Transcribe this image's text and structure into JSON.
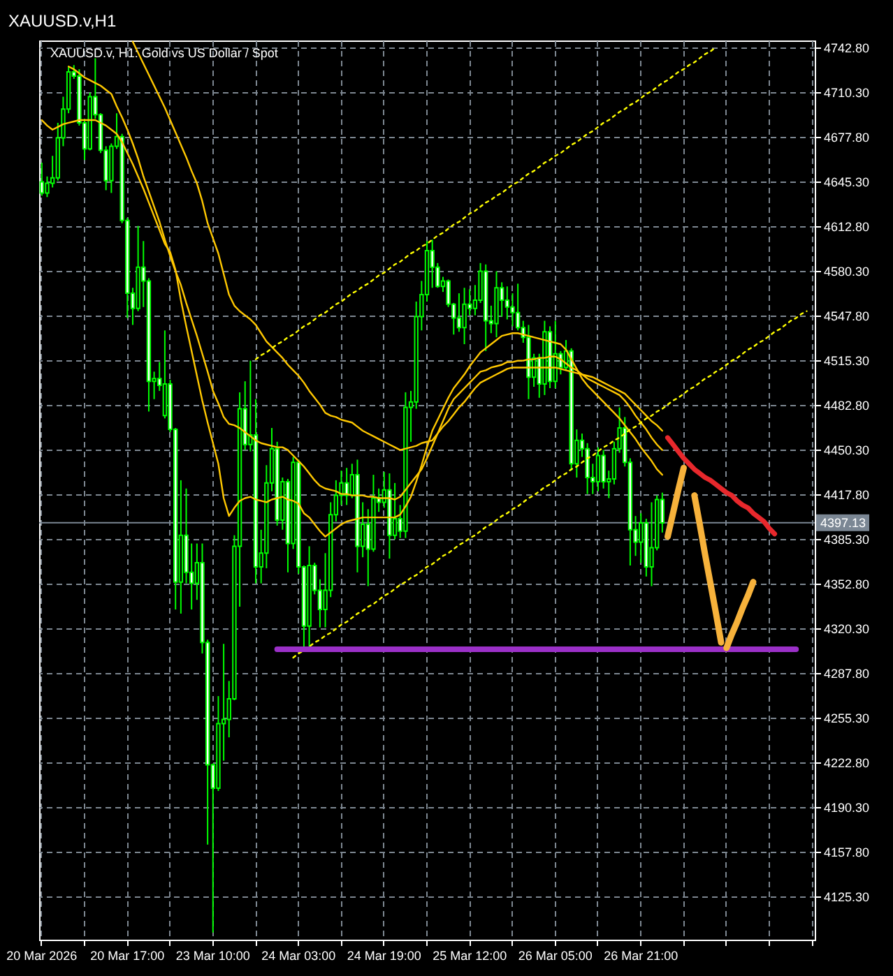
{
  "chart_data": {
    "type": "candlestick",
    "title": "XAUUSD.v,H1",
    "subtitle": "XAUUSD.v, H1: Gold vs US Dollar / Spot",
    "categories": [
      "20 Mar 2026",
      null,
      null,
      null,
      null,
      null,
      null,
      null,
      null,
      null,
      null,
      null,
      null,
      null,
      null,
      null,
      "20 Mar 17:00",
      null,
      null,
      null,
      null,
      null,
      null,
      null,
      null,
      null,
      null,
      null,
      null,
      null,
      null,
      null,
      "23 Mar 10:00",
      null,
      null,
      null,
      null,
      null,
      null,
      null,
      null,
      null,
      null,
      null,
      null,
      null,
      null,
      null,
      "24 Mar 03:00",
      null,
      null,
      null,
      null,
      null,
      null,
      null,
      null,
      null,
      null,
      null,
      null,
      null,
      null,
      null,
      "24 Mar 19:00",
      null,
      null,
      null,
      null,
      null,
      null,
      null,
      null,
      null,
      null,
      null,
      null,
      null,
      null,
      null,
      "25 Mar 12:00",
      null,
      null,
      null,
      null,
      null,
      null,
      null,
      null,
      null,
      null,
      null,
      null,
      null,
      null,
      null,
      "26 Mar 05:00",
      null,
      null,
      null,
      null,
      null,
      null,
      null,
      null,
      null,
      null,
      null,
      null,
      null,
      null,
      null,
      "26 Mar 21:00",
      null,
      null,
      null,
      null,
      null,
      null,
      null,
      null,
      null,
      null,
      null,
      null,
      null,
      null,
      null,
      null,
      null,
      null,
      null,
      null,
      null,
      null,
      null,
      null,
      null,
      null,
      null,
      null,
      null,
      null,
      null,
      null
    ],
    "ohlc": [
      [
        4645,
        4659,
        4635,
        4637
      ],
      [
        4637,
        4649,
        4634,
        4644
      ],
      [
        4644,
        4664,
        4641,
        4648
      ],
      [
        4648,
        4688,
        4646,
        4677
      ],
      [
        4677,
        4707,
        4671,
        4698
      ],
      [
        4698,
        4729,
        4695,
        4725
      ],
      [
        4725,
        4730,
        4720,
        4722
      ],
      [
        4722,
        4727,
        4686,
        4688
      ],
      [
        4688,
        4691,
        4661,
        4669
      ],
      [
        4669,
        4710,
        4668,
        4707
      ],
      [
        4707,
        4735,
        4691,
        4694
      ],
      [
        4694,
        4695,
        4666,
        4668
      ],
      [
        4668,
        4671,
        4639,
        4646
      ],
      [
        4646,
        4673,
        4637,
        4671
      ],
      [
        4671,
        4695,
        4669,
        4678
      ],
      [
        4678,
        4680,
        4615,
        4617
      ],
      [
        4617,
        4619,
        4546,
        4564
      ],
      [
        4564,
        4568,
        4541,
        4553
      ],
      [
        4553,
        4613,
        4551,
        4583
      ],
      [
        4583,
        4602,
        4554,
        4573
      ],
      [
        4573,
        4575,
        4478,
        4500
      ],
      [
        4500,
        4507,
        4487,
        4502
      ],
      [
        4502,
        4514,
        4493,
        4497
      ],
      [
        4475,
        4537,
        4473,
        4498
      ],
      [
        4498,
        4501,
        4463,
        4465
      ],
      [
        4465,
        4466,
        4334,
        4354
      ],
      [
        4354,
        4428,
        4331,
        4388
      ],
      [
        4388,
        4422,
        4353,
        4361
      ],
      [
        4361,
        4382,
        4334,
        4353
      ],
      [
        4353,
        4382,
        4341,
        4368
      ],
      [
        4368,
        4382,
        4302,
        4310
      ],
      [
        4310,
        4312,
        4163,
        4221
      ],
      [
        4221,
        4222,
        4099,
        4204
      ],
      [
        4204,
        4271,
        4202,
        4251
      ],
      [
        4251,
        4309,
        4224,
        4254
      ],
      [
        4254,
        4282,
        4241,
        4269
      ],
      [
        4269,
        4388,
        4268,
        4380
      ],
      [
        4380,
        4492,
        4336,
        4480
      ],
      [
        4480,
        4500,
        4450,
        4454
      ],
      [
        4454,
        4515,
        4449,
        4461
      ],
      [
        4461,
        4487,
        4353,
        4365
      ],
      [
        4365,
        4392,
        4353,
        4375
      ],
      [
        4375,
        4439,
        4364,
        4426
      ],
      [
        4426,
        4466,
        4420,
        4451
      ],
      [
        4451,
        4456,
        4395,
        4399
      ],
      [
        4399,
        4430,
        4392,
        4427
      ],
      [
        4427,
        4429,
        4361,
        4382
      ],
      [
        4382,
        4445,
        4378,
        4441
      ],
      [
        4441,
        4443,
        4360,
        4365
      ],
      [
        4365,
        4366,
        4307,
        4322
      ],
      [
        4322,
        4380,
        4307,
        4366
      ],
      [
        4366,
        4368,
        4345,
        4348
      ],
      [
        4348,
        4356,
        4321,
        4334
      ],
      [
        4334,
        4375,
        4321,
        4348
      ],
      [
        4348,
        4412,
        4343,
        4403
      ],
      [
        4403,
        4428,
        4398,
        4417
      ],
      [
        4417,
        4435,
        4410,
        4426
      ],
      [
        4426,
        4437,
        4410,
        4417
      ],
      [
        4417,
        4440,
        4415,
        4432
      ],
      [
        4432,
        4443,
        4361,
        4380
      ],
      [
        4380,
        4412,
        4372,
        4396
      ],
      [
        4396,
        4407,
        4351,
        4378
      ],
      [
        4378,
        4432,
        4376,
        4415
      ],
      [
        4415,
        4422,
        4405,
        4412
      ],
      [
        4412,
        4434,
        4408,
        4421
      ],
      [
        4421,
        4433,
        4371,
        4388
      ],
      [
        4388,
        4426,
        4385,
        4400
      ],
      [
        4400,
        4410,
        4386,
        4391
      ],
      [
        4391,
        4492,
        4386,
        4481
      ],
      [
        4481,
        4493,
        4456,
        4485
      ],
      [
        4485,
        4558,
        4480,
        4547
      ],
      [
        4547,
        4573,
        4537,
        4563
      ],
      [
        4563,
        4602,
        4558,
        4595
      ],
      [
        4595,
        4603,
        4568,
        4583
      ],
      [
        4583,
        4586,
        4568,
        4569
      ],
      [
        4569,
        4576,
        4565,
        4573
      ],
      [
        4573,
        4574,
        4554,
        4556
      ],
      [
        4556,
        4557,
        4534,
        4546
      ],
      [
        4546,
        4564,
        4536,
        4539
      ],
      [
        4539,
        4568,
        4527,
        4556
      ],
      [
        4556,
        4567,
        4548,
        4553
      ],
      [
        4553,
        4570,
        4548,
        4559
      ],
      [
        4559,
        4586,
        4557,
        4580
      ],
      [
        4580,
        4585,
        4522,
        4544
      ],
      [
        4544,
        4555,
        4535,
        4542
      ],
      [
        4542,
        4580,
        4532,
        4568
      ],
      [
        4568,
        4572,
        4547,
        4559
      ],
      [
        4559,
        4569,
        4545,
        4554
      ],
      [
        4554,
        4564,
        4540,
        4550
      ],
      [
        4550,
        4571,
        4537,
        4539
      ],
      [
        4539,
        4544,
        4528,
        4532
      ],
      [
        4532,
        4541,
        4487,
        4503
      ],
      [
        4503,
        4520,
        4496,
        4517
      ],
      [
        4517,
        4520,
        4488,
        4498
      ],
      [
        4498,
        4544,
        4490,
        4536
      ],
      [
        4536,
        4540,
        4495,
        4500
      ],
      [
        4500,
        4544,
        4495,
        4520
      ],
      [
        4520,
        4522,
        4505,
        4510
      ],
      [
        4510,
        4530,
        4508,
        4522
      ],
      [
        4522,
        4524,
        4435,
        4440
      ],
      [
        4440,
        4465,
        4430,
        4457
      ],
      [
        4457,
        4462,
        4445,
        4451
      ],
      [
        4451,
        4455,
        4418,
        4430
      ],
      [
        4430,
        4440,
        4418,
        4427
      ],
      [
        4427,
        4452,
        4420,
        4446
      ],
      [
        4446,
        4450,
        4422,
        4427
      ],
      [
        4427,
        4435,
        4415,
        4429
      ],
      [
        4429,
        4456,
        4425,
        4451
      ],
      [
        4451,
        4481,
        4448,
        4466
      ],
      [
        4466,
        4474,
        4438,
        4441
      ],
      [
        4441,
        4444,
        4366,
        4392
      ],
      [
        4392,
        4402,
        4373,
        4383
      ],
      [
        4383,
        4404,
        4368,
        4397
      ],
      [
        4397,
        4400,
        4358,
        4365
      ],
      [
        4365,
        4412,
        4351,
        4379
      ],
      [
        4379,
        4417,
        4377,
        4414
      ],
      [
        4414,
        4419,
        4390,
        4397
      ],
      null,
      null,
      null,
      null,
      null,
      null,
      null,
      null,
      null,
      null,
      null,
      null,
      null,
      null,
      null,
      null,
      null,
      null,
      null,
      null,
      null,
      null,
      null,
      null,
      null,
      null,
      null,
      null
    ],
    "color": "#00ff00",
    "colors": [
      "#ffffff",
      "#000000",
      "#000000",
      "#000000",
      "#000000",
      "#000000",
      "#ffffff",
      "#ffffff",
      "#ffffff",
      "#000000",
      "#ffffff",
      "#ffffff",
      "#ffffff",
      "#000000",
      "#000000",
      "#ffffff",
      "#ffffff",
      "#ffffff",
      "#000000",
      "#ffffff",
      "#ffffff",
      "#000000",
      "#ffffff",
      "#000000",
      "#ffffff",
      "#ffffff",
      "#000000",
      "#ffffff",
      "#ffffff",
      "#000000",
      "#ffffff",
      "#ffffff",
      "#ffffff",
      "#000000",
      "#000000",
      "#000000",
      "#000000",
      "#000000",
      "#ffffff",
      "#000000",
      "#ffffff",
      "#000000",
      "#000000",
      "#000000",
      "#ffffff",
      "#000000",
      "#ffffff",
      "#000000",
      "#ffffff",
      "#ffffff",
      "#000000",
      "#ffffff",
      "#ffffff",
      "#000000",
      "#000000",
      "#000000",
      "#000000",
      "#ffffff",
      "#000000",
      "#ffffff",
      "#000000",
      "#ffffff",
      "#000000",
      "#ffffff",
      "#000000",
      "#ffffff",
      "#000000",
      "#ffffff",
      "#000000",
      "#000000",
      "#000000",
      "#000000",
      "#000000",
      "#ffffff",
      "#ffffff",
      "#000000",
      "#ffffff",
      "#ffffff",
      "#ffffff",
      "#000000",
      "#ffffff",
      "#000000",
      "#000000",
      "#ffffff",
      "#ffffff",
      "#000000",
      "#ffffff",
      "#ffffff",
      "#ffffff",
      "#ffffff",
      "#ffffff",
      "#ffffff",
      "#000000",
      "#ffffff",
      "#000000",
      "#ffffff",
      "#000000",
      "#ffffff",
      "#000000",
      "#ffffff",
      "#000000",
      "#ffffff",
      "#ffffff",
      "#ffffff",
      "#000000",
      "#ffffff",
      "#000000",
      "#000000",
      "#000000",
      "#ffffff",
      "#ffffff",
      "#ffffff",
      "#000000",
      "#ffffff",
      "#000000",
      "#000000",
      "#ffffff",
      null,
      null,
      null,
      null,
      null,
      null,
      null,
      null,
      null,
      null,
      null,
      null,
      null,
      null,
      null,
      null,
      null,
      null,
      null,
      null,
      null,
      null,
      null,
      null,
      null,
      null,
      null,
      null
    ],
    "ylim": [
      4093.8,
      4747.9
    ],
    "yticks": [
      {
        "value": 4125.3,
        "label": "4125.30"
      },
      {
        "value": 4157.8,
        "label": "4157.80"
      },
      {
        "value": 4190.3,
        "label": "4190.30"
      },
      {
        "value": 4222.8,
        "label": "4222.80"
      },
      {
        "value": 4255.3,
        "label": "4255.30"
      },
      {
        "value": 4287.8,
        "label": "4287.80"
      },
      {
        "value": 4320.3,
        "label": "4320.30"
      },
      {
        "value": 4352.8,
        "label": "4352.80"
      },
      {
        "value": 4385.3,
        "label": "4385.30"
      },
      {
        "value": 4417.8,
        "label": "4417.80"
      },
      {
        "value": 4450.3,
        "label": "4450.30"
      },
      {
        "value": 4482.8,
        "label": "4482.80"
      },
      {
        "value": 4515.3,
        "label": "4515.30"
      },
      {
        "value": 4547.8,
        "label": "4547.80"
      },
      {
        "value": 4580.3,
        "label": "4580.30"
      },
      {
        "value": 4612.8,
        "label": "4612.80"
      },
      {
        "value": 4645.3,
        "label": "4645.30"
      },
      {
        "value": 4677.8,
        "label": "4677.80"
      },
      {
        "value": 4710.3,
        "label": "4710.30"
      },
      {
        "value": 4742.8,
        "label": "4742.80"
      }
    ],
    "grid": true,
    "series": [
      {
        "type": "line",
        "color": "#ffc800",
        "values": [
          4690,
          4686,
          4683,
          4685,
          4687,
          4688,
          4689,
          4690,
          4690,
          4690,
          4690,
          4688,
          4686,
          4683,
          4680,
          4674,
          4666,
          4658,
          4649,
          4640,
          4630,
          4620,
          4610,
          4600,
          4594,
          4581,
          4559,
          4540,
          4522,
          4504,
          4486,
          4470,
          4455,
          4440,
          4415,
          4402,
          4408,
          4413,
          4415,
          4416,
          4414,
          4413,
          4412,
          4414,
          4415,
          4416,
          4414,
          4413,
          4411,
          4404,
          4401,
          4396,
          4391,
          4387,
          4390,
          4393,
          4396,
          4398,
          4399,
          4400,
          4401,
          4401,
          4401,
          4401,
          4401,
          4401,
          4401,
          4403,
          4409,
          4416,
          4427,
          4439,
          4452,
          4464,
          4472,
          4480,
          4488,
          4495,
          4500,
          4505,
          4511,
          4516,
          4521,
          4524,
          4527,
          4530,
          4533,
          4534,
          4535,
          4535,
          4534,
          4533,
          4532,
          4531,
          4530,
          4529,
          4528,
          4527,
          4523,
          4516,
          4509,
          4502,
          4497,
          4493,
          4489,
          4485,
          4481,
          4477,
          4473,
          4468,
          4463,
          4458,
          4452,
          4447,
          4442,
          4436,
          4432,
          null,
          null,
          null,
          null,
          null,
          null,
          null,
          null,
          null,
          null,
          null,
          null,
          null,
          null,
          null,
          null,
          null,
          null,
          null,
          null,
          null,
          null,
          null,
          null,
          null,
          null,
          null,
          null
        ]
      },
      {
        "type": "line",
        "color": "#ffc800",
        "values": [
          null,
          null,
          null,
          null,
          null,
          4729,
          4727,
          4724,
          4721,
          4719,
          4717,
          4715,
          4712,
          4709,
          4700,
          4692,
          4683,
          4673,
          4662,
          4649,
          4638,
          4627,
          4616,
          4603,
          4591,
          4580,
          4570,
          4557,
          4545,
          4533,
          4520,
          4507,
          4493,
          4484,
          4474,
          4469,
          4468,
          4466,
          4463,
          4460,
          4457,
          4455,
          4454,
          4453,
          4452,
          4452,
          4450,
          4446,
          4442,
          4438,
          4433,
          4428,
          4424,
          4422,
          4421,
          4420,
          4418,
          4418,
          4417,
          4417,
          4417,
          4416,
          4416,
          4415,
          4415,
          4415,
          4414,
          4416,
          4421,
          4426,
          4431,
          4436,
          4444,
          4453,
          4462,
          4471,
          4480,
          4487,
          4491,
          4495,
          4499,
          4503,
          4507,
          4508,
          4510,
          4511,
          4512,
          4514,
          4514,
          4515,
          4515,
          4516,
          4516,
          4517,
          4517,
          4518,
          4518,
          4516,
          4513,
          4510,
          4508,
          4505,
          4502,
          4500,
          4498,
          4496,
          4494,
          4492,
          4490,
          4486,
          4481,
          4475,
          4470,
          4465,
          4459,
          4454,
          4450,
          null,
          null,
          null,
          null,
          null,
          null,
          null,
          null,
          null,
          null,
          null,
          null,
          null,
          null,
          null,
          null,
          null,
          null,
          null,
          null,
          null,
          null,
          null,
          null,
          null,
          null,
          null,
          null
        ]
      },
      {
        "type": "line",
        "color": "#ffc800",
        "values": [
          null,
          null,
          null,
          null,
          null,
          null,
          null,
          null,
          null,
          null,
          null,
          null,
          null,
          null,
          null,
          null,
          null,
          4747,
          4739,
          4731,
          4723,
          4715,
          4707,
          4699,
          4690,
          4681,
          4672,
          4663,
          4653,
          4644,
          4631,
          4615,
          4604,
          4593,
          4578,
          4563,
          4555,
          4551,
          4548,
          4545,
          4541,
          4535,
          4529,
          4525,
          4521,
          4517,
          4512,
          4508,
          4504,
          4499,
          4493,
          4488,
          4483,
          4477,
          4475,
          4474,
          4472,
          4471,
          4470,
          4467,
          4464,
          4462,
          4460,
          4458,
          4456,
          4454,
          4452,
          4450,
          4451,
          4452,
          4453,
          4455,
          4456,
          4457,
          4462,
          4467,
          4471,
          4476,
          4481,
          4485,
          4490,
          4495,
          4499,
          4501,
          4503,
          4505,
          4507,
          4509,
          4510,
          4510,
          4510,
          4510,
          4510,
          4510,
          4510,
          4510,
          4510,
          4509,
          4508,
          4507,
          4506,
          4505,
          4504,
          4503,
          4501,
          4499,
          4497,
          4495,
          4493,
          4491,
          4487,
          4483,
          4479,
          4475,
          4471,
          4468,
          4464,
          null,
          null,
          null,
          null,
          null,
          null,
          null,
          null,
          null,
          null,
          null,
          null,
          null,
          null,
          null,
          null,
          null,
          null,
          null,
          null,
          null,
          null,
          null,
          null,
          null,
          null,
          null,
          null
        ]
      },
      {
        "type": "line",
        "color": "#ffff00",
        "line_style": "dotted",
        "values": [
          null,
          null,
          null,
          null,
          null,
          null,
          null,
          null,
          null,
          null,
          null,
          null,
          null,
          null,
          null,
          null,
          null,
          null,
          null,
          null,
          null,
          null,
          null,
          null,
          null,
          null,
          null,
          null,
          null,
          null,
          null,
          null,
          null,
          null,
          null,
          null,
          null,
          null,
          null,
          null,
          4516,
          4519,
          4521,
          4524,
          4527,
          4529,
          4532,
          4534,
          4537,
          4540,
          4542,
          4545,
          4548,
          4550,
          4553,
          4556,
          4558,
          4561,
          4564,
          4566,
          4569,
          4571,
          4574,
          4577,
          4579,
          4582,
          4585,
          4587,
          4590,
          4593,
          4595,
          4598,
          4600,
          4603,
          4606,
          4608,
          4611,
          4614,
          4616,
          4619,
          4622,
          4624,
          4627,
          4630,
          4632,
          4635,
          4637,
          4640,
          4643,
          4645,
          4648,
          4651,
          4653,
          4656,
          4659,
          4661,
          4664,
          4666,
          4669,
          4672,
          4674,
          4677,
          4680,
          4682,
          4685,
          4688,
          4690,
          4693,
          4696,
          4698,
          4701,
          4703,
          4706,
          4709,
          4711,
          4714,
          4717,
          4719,
          4722,
          4725,
          4727,
          4730,
          4732,
          4735,
          4738,
          4740,
          4743,
          null,
          null,
          null,
          null,
          null,
          null,
          null,
          null,
          null,
          null,
          null,
          null,
          null,
          null,
          null,
          null,
          null,
          null
        ]
      },
      {
        "type": "line",
        "color": "#ffff00",
        "line_style": "dotted",
        "values": [
          null,
          null,
          null,
          null,
          null,
          null,
          null,
          null,
          null,
          null,
          null,
          null,
          null,
          null,
          null,
          null,
          null,
          null,
          null,
          null,
          null,
          null,
          null,
          null,
          null,
          null,
          null,
          null,
          null,
          null,
          null,
          null,
          null,
          null,
          null,
          null,
          null,
          null,
          null,
          null,
          null,
          null,
          null,
          null,
          null,
          null,
          null,
          4299,
          4302,
          4304,
          4307,
          4310,
          4312,
          4315,
          4317,
          4320,
          4323,
          4325,
          4328,
          4331,
          4333,
          4336,
          4338,
          4341,
          4344,
          4346,
          4349,
          4352,
          4354,
          4357,
          4359,
          4362,
          4365,
          4367,
          4370,
          4373,
          4375,
          4378,
          4381,
          4383,
          4386,
          4388,
          4391,
          4394,
          4396,
          4399,
          4402,
          4404,
          4407,
          4409,
          4412,
          4415,
          4417,
          4420,
          4423,
          4425,
          4428,
          4431,
          4433,
          4436,
          4438,
          4441,
          4444,
          4446,
          4449,
          4452,
          4454,
          4457,
          4459,
          4462,
          4465,
          4467,
          4470,
          4473,
          4475,
          4478,
          4480,
          4483,
          4486,
          4488,
          4491,
          4494,
          4496,
          4499,
          4502,
          4504,
          4507,
          4509,
          4512,
          4515,
          4517,
          4520,
          4523,
          4525,
          4528,
          4530,
          4533,
          4536,
          4538,
          4541,
          4544,
          4546,
          4549,
          4551,
          null
        ]
      },
      {
        "type": "line",
        "color": "#9b30c8",
        "values": [
          null,
          null,
          null,
          null,
          null,
          null,
          null,
          null,
          null,
          null,
          null,
          null,
          null,
          null,
          null,
          null,
          null,
          null,
          null,
          null,
          null,
          null,
          null,
          null,
          null,
          null,
          null,
          null,
          null,
          null,
          null,
          null,
          null,
          null,
          null,
          null,
          null,
          null,
          null,
          null,
          null,
          null,
          null,
          null,
          4305,
          4305,
          4305,
          4305,
          4305,
          4305,
          4305,
          4305,
          4305,
          4305,
          4305,
          4305,
          4305,
          4305,
          4305,
          4305,
          4305,
          4305,
          4305,
          4305,
          4305,
          4305,
          4305,
          4305,
          4305,
          4305,
          4305,
          4305,
          4305,
          4305,
          4305,
          4305,
          4305,
          4305,
          4305,
          4305,
          4305,
          4305,
          4305,
          4305,
          4305,
          4305,
          4305,
          4305,
          4305,
          4305,
          4305,
          4305,
          4305,
          4305,
          4305,
          4305,
          4305,
          4305,
          4305,
          4305,
          4305,
          4305,
          4305,
          4305,
          4305,
          4305,
          4305,
          4305,
          4305,
          4305,
          4305,
          4305,
          4305,
          4305,
          4305,
          4305,
          4305,
          4305,
          4305,
          4305,
          4305,
          4305,
          4305,
          4305,
          4305,
          4305,
          4305,
          4305,
          4305,
          4305,
          4305,
          4305,
          4305,
          4305,
          4305,
          4305,
          4305,
          4305,
          4305,
          4305,
          4305,
          4305,
          null,
          null,
          null
        ]
      },
      {
        "type": "line",
        "color": "#e8282c",
        "values": [
          null,
          null,
          null,
          null,
          null,
          null,
          null,
          null,
          null,
          null,
          null,
          null,
          null,
          null,
          null,
          null,
          null,
          null,
          null,
          null,
          null,
          null,
          null,
          null,
          null,
          null,
          null,
          null,
          null,
          null,
          null,
          null,
          null,
          null,
          null,
          null,
          null,
          null,
          null,
          null,
          null,
          null,
          null,
          null,
          null,
          null,
          null,
          null,
          null,
          null,
          null,
          null,
          null,
          null,
          null,
          null,
          null,
          null,
          null,
          null,
          null,
          null,
          null,
          null,
          null,
          null,
          null,
          null,
          null,
          null,
          null,
          null,
          null,
          null,
          null,
          null,
          null,
          null,
          null,
          null,
          null,
          null,
          null,
          null,
          null,
          null,
          null,
          null,
          null,
          null,
          null,
          null,
          null,
          null,
          null,
          null,
          null,
          null,
          null,
          null,
          null,
          null,
          null,
          null,
          null,
          null,
          null,
          null,
          null,
          null,
          null,
          null,
          null,
          null,
          null,
          null,
          null,
          4459,
          4454,
          4449,
          4444,
          4440,
          4436,
          4433,
          4430,
          4428,
          4425,
          4422,
          4419,
          4417,
          4413,
          4410,
          4408,
          4404,
          4401,
          4398,
          4393,
          4389,
          null,
          null,
          null,
          null,
          null,
          null,
          null
        ]
      },
      {
        "type": "line",
        "color": "#f7b23b",
        "values": [
          null,
          null,
          null,
          null,
          null,
          null,
          null,
          null,
          null,
          null,
          null,
          null,
          null,
          null,
          null,
          null,
          null,
          null,
          null,
          null,
          null,
          null,
          null,
          null,
          null,
          null,
          null,
          null,
          null,
          null,
          null,
          null,
          null,
          null,
          null,
          null,
          null,
          null,
          null,
          null,
          null,
          null,
          null,
          null,
          null,
          null,
          null,
          null,
          null,
          null,
          null,
          null,
          null,
          null,
          null,
          null,
          null,
          null,
          null,
          null,
          null,
          null,
          null,
          null,
          null,
          null,
          null,
          null,
          null,
          null,
          null,
          null,
          null,
          null,
          null,
          null,
          null,
          null,
          null,
          null,
          null,
          null,
          null,
          null,
          null,
          null,
          null,
          null,
          null,
          null,
          null,
          null,
          null,
          null,
          null,
          null,
          null,
          null,
          null,
          null,
          null,
          null,
          null,
          null,
          null,
          null,
          null,
          null,
          null,
          null,
          null,
          null,
          null,
          null,
          null,
          null,
          null,
          4387,
          4404,
          4421,
          4437,
          null,
          null,
          null,
          null,
          null,
          null,
          null,
          null,
          null,
          null,
          null,
          null,
          null,
          null,
          null,
          null,
          null,
          null,
          null,
          null,
          null,
          null,
          null,
          null
        ]
      },
      {
        "type": "line",
        "color": "#f7b23b",
        "values": [
          null,
          null,
          null,
          null,
          null,
          null,
          null,
          null,
          null,
          null,
          null,
          null,
          null,
          null,
          null,
          null,
          null,
          null,
          null,
          null,
          null,
          null,
          null,
          null,
          null,
          null,
          null,
          null,
          null,
          null,
          null,
          null,
          null,
          null,
          null,
          null,
          null,
          null,
          null,
          null,
          null,
          null,
          null,
          null,
          null,
          null,
          null,
          null,
          null,
          null,
          null,
          null,
          null,
          null,
          null,
          null,
          null,
          null,
          null,
          null,
          null,
          null,
          null,
          null,
          null,
          null,
          null,
          null,
          null,
          null,
          null,
          null,
          null,
          null,
          null,
          null,
          null,
          null,
          null,
          null,
          null,
          null,
          null,
          null,
          null,
          null,
          null,
          null,
          null,
          null,
          null,
          null,
          null,
          null,
          null,
          null,
          null,
          null,
          null,
          null,
          null,
          null,
          null,
          null,
          null,
          null,
          null,
          null,
          null,
          null,
          null,
          null,
          null,
          null,
          null,
          null,
          null,
          null,
          null,
          null,
          null,
          null,
          4417,
          4396,
          4374,
          4353,
          4332,
          4310,
          null,
          null,
          null,
          null,
          null,
          null,
          null,
          null,
          null,
          null,
          null,
          null,
          null,
          null,
          null,
          null,
          null
        ]
      },
      {
        "type": "line",
        "color": "#f7b23b",
        "values": [
          null,
          null,
          null,
          null,
          null,
          null,
          null,
          null,
          null,
          null,
          null,
          null,
          null,
          null,
          null,
          null,
          null,
          null,
          null,
          null,
          null,
          null,
          null,
          null,
          null,
          null,
          null,
          null,
          null,
          null,
          null,
          null,
          null,
          null,
          null,
          null,
          null,
          null,
          null,
          null,
          null,
          null,
          null,
          null,
          null,
          null,
          null,
          null,
          null,
          null,
          null,
          null,
          null,
          null,
          null,
          null,
          null,
          null,
          null,
          null,
          null,
          null,
          null,
          null,
          null,
          null,
          null,
          null,
          null,
          null,
          null,
          null,
          null,
          null,
          null,
          null,
          null,
          null,
          null,
          null,
          null,
          null,
          null,
          null,
          null,
          null,
          null,
          null,
          null,
          null,
          null,
          null,
          null,
          null,
          null,
          null,
          null,
          null,
          null,
          null,
          null,
          null,
          null,
          null,
          null,
          null,
          null,
          null,
          null,
          null,
          null,
          null,
          null,
          null,
          null,
          null,
          null,
          null,
          null,
          null,
          null,
          null,
          null,
          null,
          null,
          null,
          null,
          null,
          4306,
          4316,
          4325,
          4335,
          4344,
          4354,
          null,
          null,
          null,
          null,
          null,
          null,
          null,
          null,
          null,
          null,
          null
        ]
      }
    ],
    "ref_lines": [
      {
        "axis": "y",
        "value": 4397.13,
        "label": "4397.13",
        "color": "#7b8794"
      }
    ]
  }
}
